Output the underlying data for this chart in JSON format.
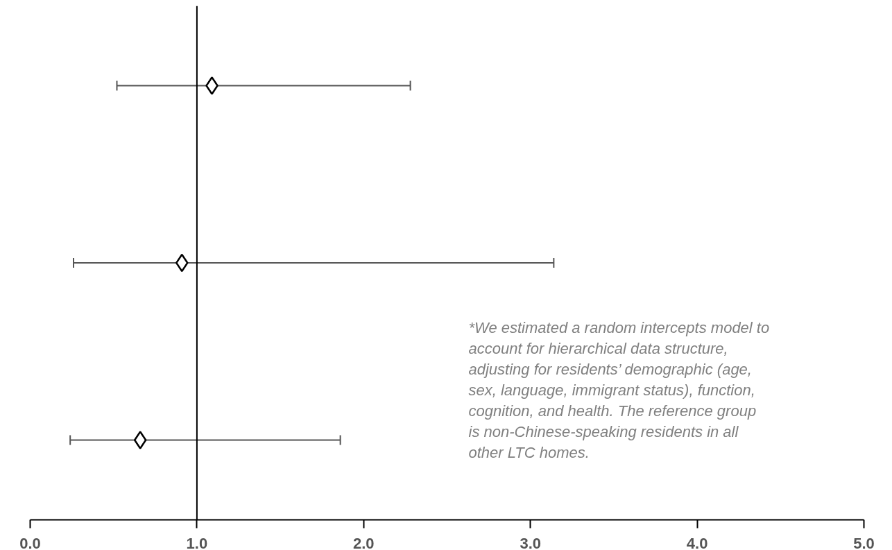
{
  "chart_data": {
    "type": "scatter",
    "orientation": "horizontal",
    "categories": [
      null,
      null,
      null
    ],
    "series": [
      {
        "color": "#000000",
        "values": [
          1.09,
          0.91,
          0.66
        ],
        "errors": [
          [
            0.52,
            2.28
          ],
          [
            0.26,
            3.14
          ],
          [
            0.24,
            1.86
          ]
        ]
      }
    ],
    "marker": "diamond",
    "xlim": [
      0,
      5
    ],
    "xticks": [
      {
        "value": 0,
        "label": "0.0"
      },
      {
        "value": 1,
        "label": "1.0"
      },
      {
        "value": 2,
        "label": "2.0"
      },
      {
        "value": 3,
        "label": "3.0"
      },
      {
        "value": 4,
        "label": "4.0"
      },
      {
        "value": 5,
        "label": "5.0"
      }
    ],
    "tick_labels": "x",
    "grid": false,
    "ref_lines": [
      {
        "axis": "x",
        "value": 1,
        "color": "#000000",
        "line_style": "solid"
      }
    ],
    "annotations": [
      "*We estimated a random intercepts model to account for hierarchical data structure, adjusting for residents’ demographic (age, sex, language, immigrant status), function, cognition, and health. The reference group is non-Chinese-speaking residents in all other LTC homes."
    ]
  }
}
